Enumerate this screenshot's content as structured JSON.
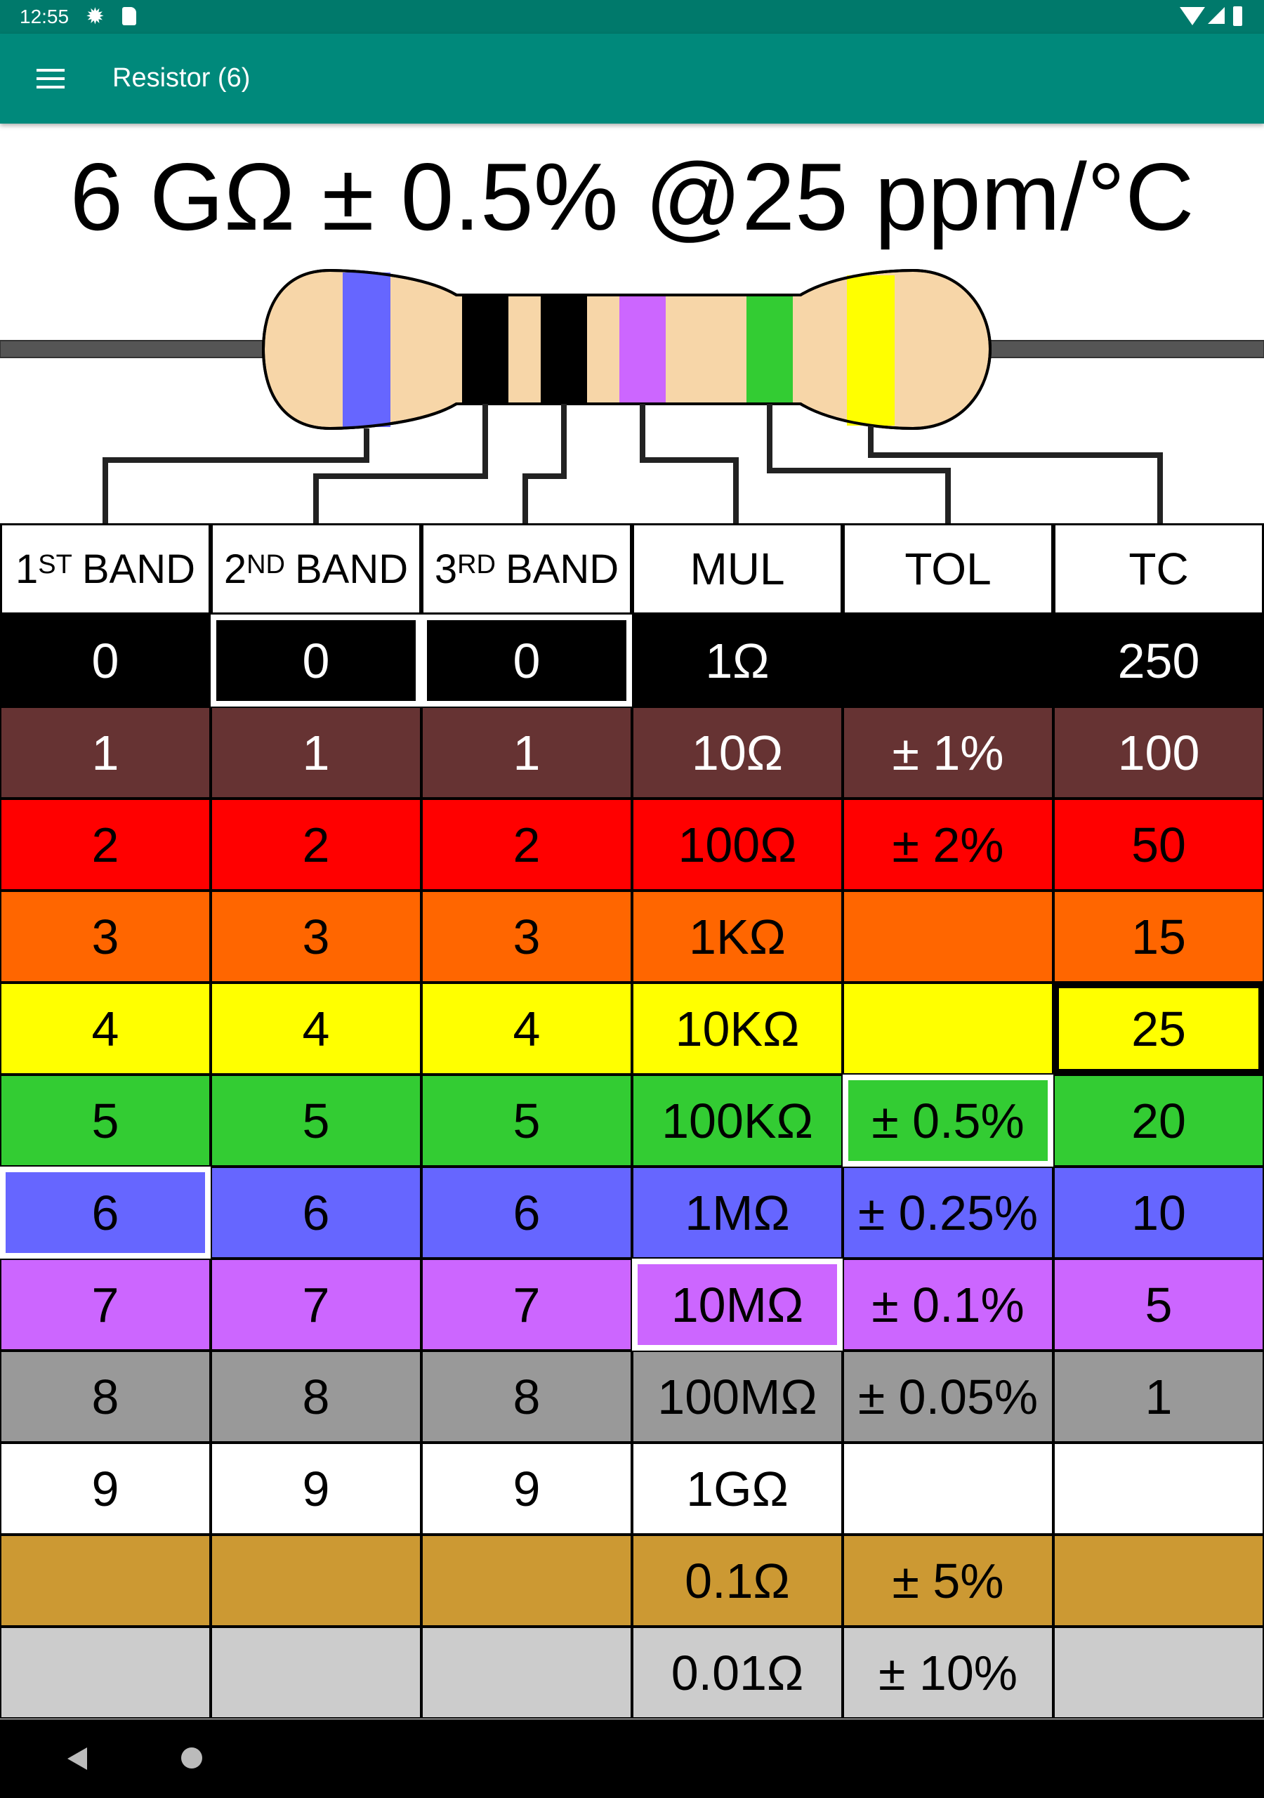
{
  "status_bar": {
    "time": "12:55",
    "icons": [
      "gear-icon",
      "sd-card-icon",
      "wifi-icon",
      "signal-icon",
      "battery-icon"
    ]
  },
  "app_bar": {
    "title": "Resistor (6)",
    "menu_icon": "hamburger-menu-icon"
  },
  "result": {
    "text": "6 GΩ ± 0.5% @25 ppm/°C"
  },
  "resistor": {
    "body_color": "#f7d6a8",
    "band_colors": [
      "#6666ff",
      "#000000",
      "#000000",
      "#cc66ff",
      "#33cc33",
      "#ffff00"
    ]
  },
  "table": {
    "headers": [
      {
        "num": "1",
        "sup": "ST",
        "word": "BAND"
      },
      {
        "num": "2",
        "sup": "ND",
        "word": "BAND"
      },
      {
        "num": "3",
        "sup": "RD",
        "word": "BAND"
      },
      {
        "num": "MUL",
        "sup": "",
        "word": ""
      },
      {
        "num": "TOL",
        "sup": "",
        "word": ""
      },
      {
        "num": "TC",
        "sup": "",
        "word": ""
      }
    ],
    "rows": [
      {
        "color": "#000000",
        "text_color": "#ffffff",
        "cells": [
          "0",
          "0",
          "0",
          "1Ω",
          "",
          "250"
        ]
      },
      {
        "color": "#663333",
        "text_color": "#ffffff",
        "cells": [
          "1",
          "1",
          "1",
          "10Ω",
          "± 1%",
          "100"
        ]
      },
      {
        "color": "#ff0000",
        "text_color": "#000000",
        "cells": [
          "2",
          "2",
          "2",
          "100Ω",
          "± 2%",
          "50"
        ]
      },
      {
        "color": "#ff6600",
        "text_color": "#000000",
        "cells": [
          "3",
          "3",
          "3",
          "1KΩ",
          "",
          "15"
        ]
      },
      {
        "color": "#ffff00",
        "text_color": "#000000",
        "cells": [
          "4",
          "4",
          "4",
          "10KΩ",
          "",
          "25"
        ]
      },
      {
        "color": "#33cc33",
        "text_color": "#000000",
        "cells": [
          "5",
          "5",
          "5",
          "100KΩ",
          "± 0.5%",
          "20"
        ]
      },
      {
        "color": "#6666ff",
        "text_color": "#000000",
        "cells": [
          "6",
          "6",
          "6",
          "1MΩ",
          "± 0.25%",
          "10"
        ]
      },
      {
        "color": "#cc66ff",
        "text_color": "#000000",
        "cells": [
          "7",
          "7",
          "7",
          "10MΩ",
          "± 0.1%",
          "5"
        ]
      },
      {
        "color": "#999999",
        "text_color": "#000000",
        "cells": [
          "8",
          "8",
          "8",
          "100MΩ",
          "± 0.05%",
          "1"
        ]
      },
      {
        "color": "#ffffff",
        "text_color": "#000000",
        "cells": [
          "9",
          "9",
          "9",
          "1GΩ",
          "",
          ""
        ]
      },
      {
        "color": "#cc9933",
        "text_color": "#000000",
        "cells": [
          "",
          "",
          "",
          "0.1Ω",
          "± 5%",
          ""
        ]
      },
      {
        "color": "#cccccc",
        "text_color": "#000000",
        "cells": [
          "",
          "",
          "",
          "0.01Ω",
          "± 10%",
          ""
        ]
      }
    ],
    "selected": {
      "band1": 6,
      "band2": 0,
      "band3": 0,
      "mul": 7,
      "tol": 5,
      "tc": 4
    }
  },
  "nav_bar": {
    "icons": [
      "back-icon",
      "home-icon"
    ]
  }
}
